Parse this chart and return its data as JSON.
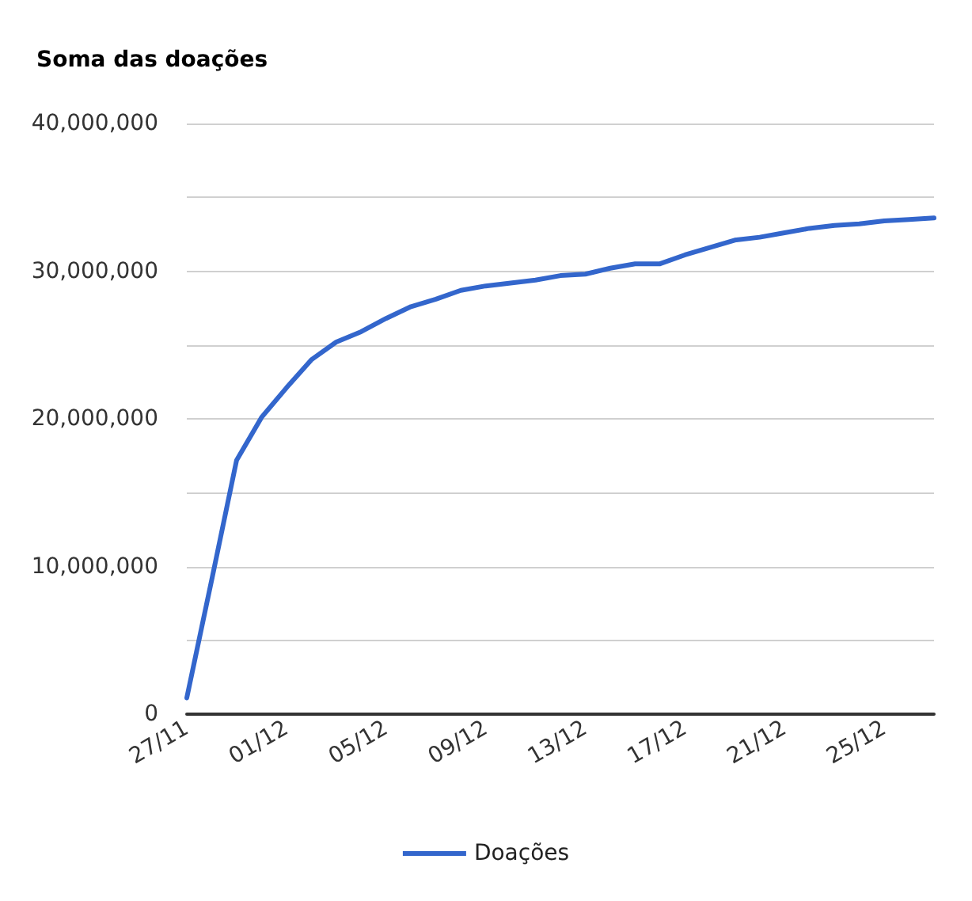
{
  "chart_data": {
    "type": "line",
    "title": "Soma das doações",
    "categories": [
      "27/11",
      null,
      null,
      null,
      "01/12",
      null,
      null,
      null,
      "05/12",
      null,
      null,
      null,
      "09/12",
      null,
      null,
      null,
      "13/12",
      null,
      null,
      null,
      "17/12",
      null,
      null,
      null,
      "21/12",
      null,
      null,
      null,
      "25/12",
      null,
      null
    ],
    "series": [
      {
        "name": "Doações",
        "color": "#3366cc",
        "values": [
          1100000,
          9100000,
          17200000,
          20100000,
          22100000,
          24000000,
          25200000,
          25900000,
          26800000,
          27600000,
          28100000,
          28700000,
          29000000,
          29200000,
          29400000,
          29700000,
          29800000,
          30200000,
          30500000,
          30500000,
          31100000,
          31600000,
          32100000,
          32300000,
          32600000,
          32900000,
          33100000,
          33200000,
          33400000,
          33500000,
          33600000
        ]
      }
    ],
    "ylim": [
      0,
      40000000
    ],
    "yticks": [
      0,
      {
        "value": 5000000,
        "label": null
      },
      {
        "value": 10000000,
        "label": "10,000,000"
      },
      {
        "value": 15000000,
        "label": null
      },
      {
        "value": 20000000,
        "label": "20,000,000"
      },
      {
        "value": 25000000,
        "label": null
      },
      {
        "value": 30000000,
        "label": "30,000,000"
      },
      {
        "value": 35000000,
        "label": null
      },
      {
        "value": 40000000,
        "label": "40,000,000"
      }
    ],
    "grid": "y",
    "legend": "bottom",
    "marker": "none",
    "line_style": "solid"
  }
}
